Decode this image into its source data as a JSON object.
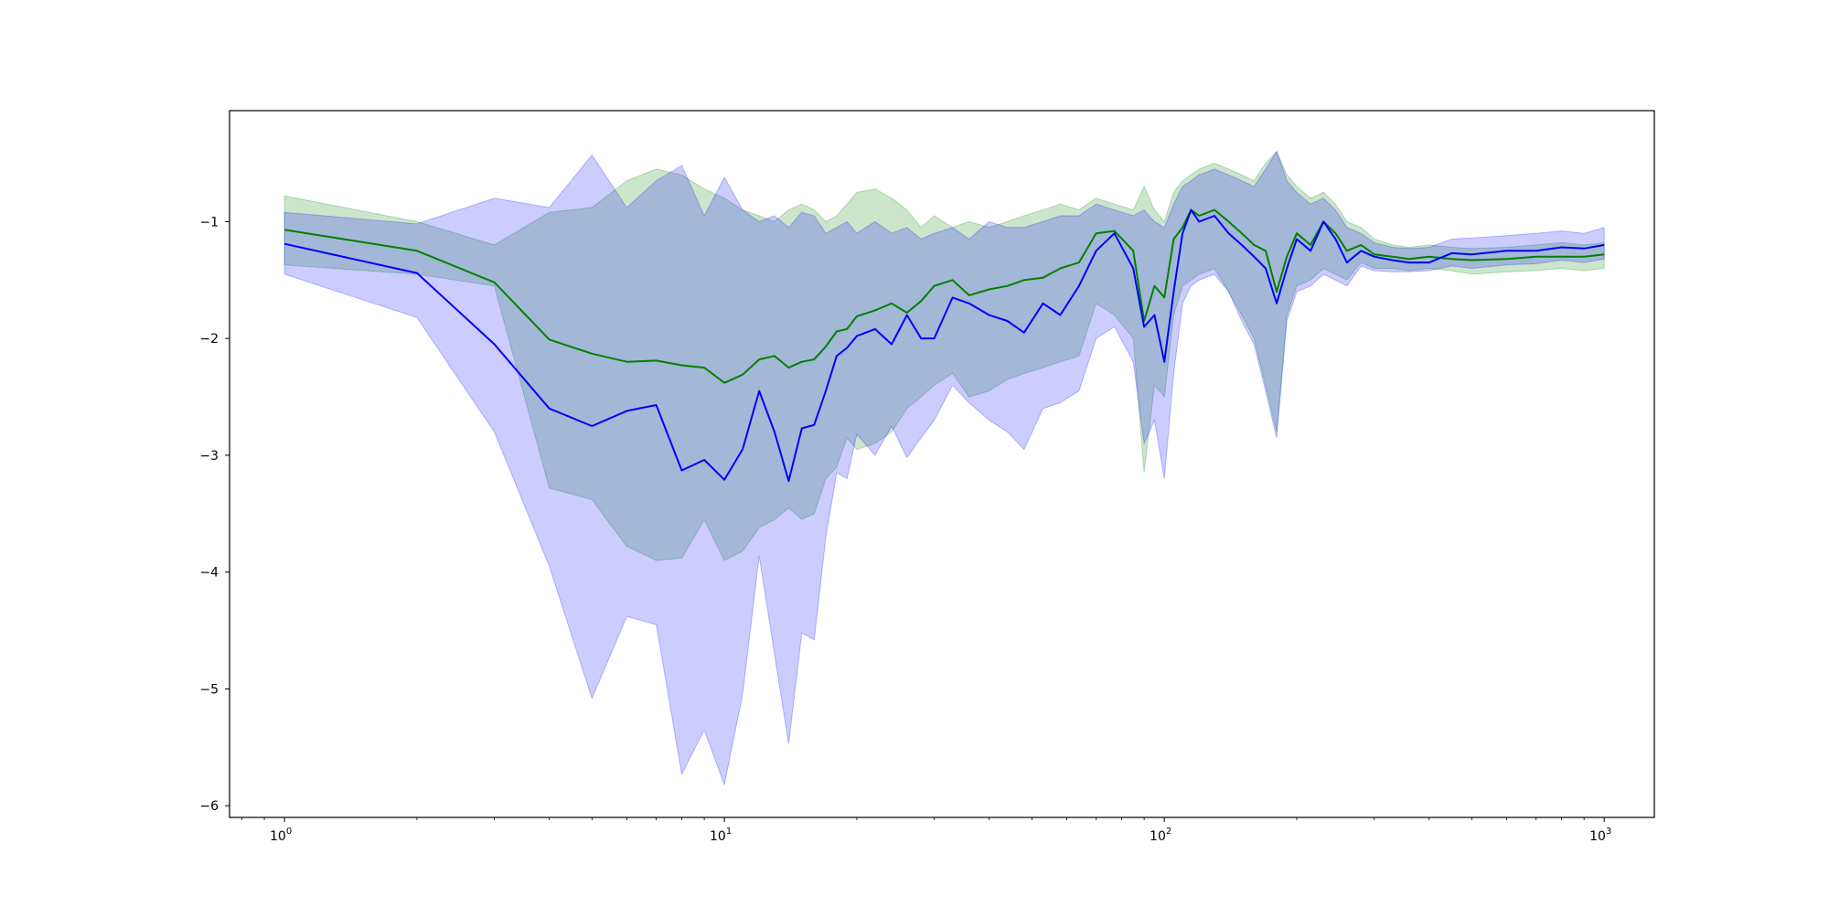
{
  "chart_data": {
    "type": "line",
    "title": "",
    "xlabel": "",
    "ylabel": "",
    "xscale": "log",
    "xlim": [
      0.75,
      1300
    ],
    "ylim": [
      -6.1,
      -0.05
    ],
    "grid": false,
    "legend": "none",
    "x_ticks": [
      {
        "value": 1,
        "base": "10",
        "exp": "0"
      },
      {
        "value": 10,
        "base": "10",
        "exp": "1"
      },
      {
        "value": 100,
        "base": "10",
        "exp": "2"
      },
      {
        "value": 1000,
        "base": "10",
        "exp": "3"
      }
    ],
    "y_ticks": [
      {
        "value": -1,
        "label": "−1"
      },
      {
        "value": -2,
        "label": "−2"
      },
      {
        "value": -3,
        "label": "−3"
      },
      {
        "value": -4,
        "label": "−4"
      },
      {
        "value": -5,
        "label": "−5"
      },
      {
        "value": -6,
        "label": "−6"
      }
    ],
    "x": [
      1,
      2,
      3,
      4,
      5,
      6,
      7,
      8,
      9,
      10,
      11,
      12,
      13,
      14,
      15,
      16,
      17,
      18,
      19,
      20,
      22,
      24,
      26,
      28,
      30,
      33,
      36,
      40,
      44,
      48,
      53,
      58,
      64,
      70,
      77,
      85,
      90,
      95,
      100,
      105,
      110,
      115,
      120,
      130,
      140,
      150,
      160,
      170,
      180,
      190,
      200,
      215,
      230,
      245,
      260,
      280,
      300,
      330,
      360,
      400,
      450,
      500,
      600,
      700,
      800,
      900,
      1000
    ],
    "series": [
      {
        "color": "#008000",
        "band_color": "#008000",
        "values": [
          -1.07,
          -1.25,
          -1.52,
          -2.01,
          -2.13,
          -2.2,
          -2.19,
          -2.23,
          -2.25,
          -2.38,
          -2.31,
          -2.18,
          -2.15,
          -2.25,
          -2.2,
          -2.18,
          -2.07,
          -1.94,
          -1.92,
          -1.81,
          -1.76,
          -1.7,
          -1.78,
          -1.68,
          -1.55,
          -1.5,
          -1.63,
          -1.58,
          -1.55,
          -1.5,
          -1.48,
          -1.4,
          -1.35,
          -1.1,
          -1.08,
          -1.25,
          -1.85,
          -1.55,
          -1.65,
          -1.15,
          -1.05,
          -0.9,
          -0.95,
          -0.9,
          -1.0,
          -1.1,
          -1.2,
          -1.25,
          -1.6,
          -1.3,
          -1.1,
          -1.2,
          -1.0,
          -1.1,
          -1.25,
          -1.2,
          -1.28,
          -1.3,
          -1.32,
          -1.3,
          -1.32,
          -1.33,
          -1.32,
          -1.3,
          -1.3,
          -1.3,
          -1.28
        ],
        "lower": [
          -1.37,
          -1.45,
          -1.55,
          -3.28,
          -3.38,
          -3.78,
          -3.9,
          -3.88,
          -3.55,
          -3.9,
          -3.82,
          -3.62,
          -3.55,
          -3.45,
          -3.55,
          -3.5,
          -3.2,
          -3.1,
          -2.85,
          -2.95,
          -2.9,
          -2.8,
          -2.6,
          -2.5,
          -2.4,
          -2.3,
          -2.5,
          -2.45,
          -2.35,
          -2.3,
          -2.25,
          -2.2,
          -2.15,
          -1.7,
          -1.8,
          -2.0,
          -3.15,
          -2.4,
          -2.5,
          -1.8,
          -1.55,
          -1.5,
          -1.45,
          -1.4,
          -1.6,
          -1.8,
          -2.0,
          -2.4,
          -2.8,
          -1.8,
          -1.55,
          -1.5,
          -1.4,
          -1.45,
          -1.5,
          -1.35,
          -1.4,
          -1.4,
          -1.42,
          -1.4,
          -1.42,
          -1.45,
          -1.43,
          -1.42,
          -1.4,
          -1.42,
          -1.4
        ],
        "upper": [
          -0.78,
          -1.0,
          -1.2,
          -0.92,
          -0.88,
          -0.65,
          -0.55,
          -0.6,
          -0.72,
          -0.8,
          -0.9,
          -0.95,
          -1.0,
          -0.9,
          -0.85,
          -0.9,
          -1.0,
          -0.95,
          -0.85,
          -0.75,
          -0.72,
          -0.8,
          -0.9,
          -1.05,
          -0.95,
          -1.05,
          -1.0,
          -1.05,
          -1.0,
          -0.95,
          -0.9,
          -0.85,
          -0.9,
          -0.8,
          -0.85,
          -0.9,
          -0.7,
          -0.9,
          -1.0,
          -0.75,
          -0.65,
          -0.6,
          -0.55,
          -0.5,
          -0.55,
          -0.6,
          -0.65,
          -0.5,
          -0.4,
          -0.6,
          -0.7,
          -0.8,
          -0.75,
          -0.85,
          -1.0,
          -1.05,
          -1.15,
          -1.2,
          -1.22,
          -1.2,
          -1.22,
          -1.23,
          -1.22,
          -1.2,
          -1.18,
          -1.2,
          -1.18
        ]
      },
      {
        "color": "#0000ff",
        "band_color": "#0000ff",
        "values": [
          -1.19,
          -1.44,
          -2.05,
          -2.6,
          -2.75,
          -2.62,
          -2.57,
          -3.13,
          -3.04,
          -3.21,
          -2.95,
          -2.45,
          -2.8,
          -3.22,
          -2.77,
          -2.74,
          -2.45,
          -2.15,
          -2.08,
          -1.98,
          -1.92,
          -2.05,
          -1.8,
          -2.0,
          -2.0,
          -1.65,
          -1.7,
          -1.8,
          -1.85,
          -1.95,
          -1.7,
          -1.8,
          -1.55,
          -1.25,
          -1.1,
          -1.4,
          -1.9,
          -1.8,
          -2.2,
          -1.6,
          -1.1,
          -0.9,
          -1.0,
          -0.95,
          -1.1,
          -1.2,
          -1.3,
          -1.4,
          -1.7,
          -1.4,
          -1.15,
          -1.25,
          -1.0,
          -1.15,
          -1.35,
          -1.25,
          -1.3,
          -1.33,
          -1.35,
          -1.35,
          -1.27,
          -1.28,
          -1.25,
          -1.25,
          -1.22,
          -1.23,
          -1.2
        ],
        "lower": [
          -1.45,
          -1.82,
          -2.8,
          -3.95,
          -5.08,
          -4.38,
          -4.45,
          -5.73,
          -5.35,
          -5.82,
          -5.05,
          -3.86,
          -4.7,
          -5.47,
          -4.52,
          -4.58,
          -3.7,
          -3.15,
          -3.2,
          -2.82,
          -3.0,
          -2.75,
          -3.02,
          -2.85,
          -2.7,
          -2.4,
          -2.55,
          -2.7,
          -2.8,
          -2.95,
          -2.6,
          -2.55,
          -2.45,
          -2.0,
          -1.9,
          -2.2,
          -2.9,
          -2.7,
          -3.2,
          -2.3,
          -1.7,
          -1.55,
          -1.5,
          -1.45,
          -1.6,
          -1.85,
          -2.05,
          -2.45,
          -2.85,
          -1.85,
          -1.6,
          -1.55,
          -1.45,
          -1.5,
          -1.55,
          -1.38,
          -1.42,
          -1.43,
          -1.43,
          -1.42,
          -1.38,
          -1.4,
          -1.37,
          -1.36,
          -1.33,
          -1.35,
          -1.32
        ],
        "upper": [
          -0.92,
          -1.02,
          -0.8,
          -0.88,
          -0.43,
          -0.88,
          -0.65,
          -0.52,
          -0.95,
          -0.62,
          -0.9,
          -1.0,
          -0.95,
          -1.05,
          -0.92,
          -0.95,
          -1.1,
          -1.05,
          -1.0,
          -1.1,
          -1.0,
          -1.1,
          -1.05,
          -1.15,
          -1.1,
          -1.05,
          -1.15,
          -1.0,
          -1.05,
          -1.05,
          -1.0,
          -0.95,
          -0.95,
          -0.85,
          -0.9,
          -0.95,
          -0.9,
          -1.0,
          -1.05,
          -0.85,
          -0.7,
          -0.65,
          -0.6,
          -0.55,
          -0.6,
          -0.65,
          -0.7,
          -0.55,
          -0.4,
          -0.65,
          -0.75,
          -0.85,
          -0.8,
          -0.9,
          -1.05,
          -1.1,
          -1.18,
          -1.22,
          -1.23,
          -1.22,
          -1.15,
          -1.14,
          -1.12,
          -1.1,
          -1.08,
          -1.1,
          -1.05
        ]
      }
    ]
  }
}
